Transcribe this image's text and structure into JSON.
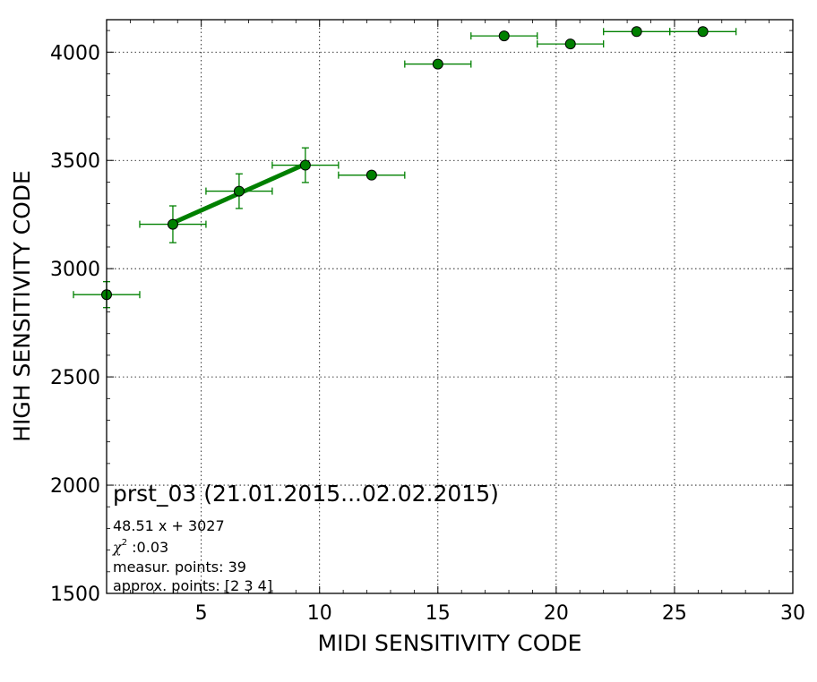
{
  "chart_data": {
    "type": "scatter",
    "xlabel": "MIDI SENSITIVITY CODE",
    "ylabel": "HIGH SENSITIVITY CODE",
    "xlim": [
      1,
      30
    ],
    "ylim": [
      1500,
      4150
    ],
    "x_ticks": [
      5,
      10,
      15,
      20,
      25,
      30
    ],
    "y_ticks": [
      1500,
      2000,
      2500,
      3000,
      3500,
      4000
    ],
    "grid": true,
    "colors": {
      "points": "#008000",
      "errorbars": "#008000",
      "fit": "#008000",
      "point_edge": "#000000"
    },
    "series": [
      {
        "points": [
          {
            "x": 1.0,
            "y": 2880,
            "xerr": 1.4,
            "yerr": 60
          },
          {
            "x": 3.8,
            "y": 3205,
            "xerr": 1.4,
            "yerr": 85
          },
          {
            "x": 6.6,
            "y": 3358,
            "xerr": 1.4,
            "yerr": 80
          },
          {
            "x": 9.4,
            "y": 3478,
            "xerr": 1.4,
            "yerr": 80
          },
          {
            "x": 12.2,
            "y": 3432,
            "xerr": 1.4,
            "yerr": 0
          },
          {
            "x": 15.0,
            "y": 3945,
            "xerr": 1.4,
            "yerr": 0
          },
          {
            "x": 17.8,
            "y": 4075,
            "xerr": 1.4,
            "yerr": 0
          },
          {
            "x": 20.6,
            "y": 4038,
            "xerr": 1.4,
            "yerr": 0
          },
          {
            "x": 23.4,
            "y": 4095,
            "xerr": 1.4,
            "yerr": 0
          },
          {
            "x": 26.2,
            "y": 4095,
            "xerr": 1.4,
            "yerr": 0
          }
        ]
      }
    ],
    "fit_line": {
      "slope": 48.51,
      "intercept": 3027,
      "x_range": [
        3.8,
        9.4
      ]
    },
    "annotation": {
      "title": "prst_03 (21.01.2015...02.02.2015)",
      "equation": "48.51 x + 3027",
      "chi_symbol": "χ",
      "chi_exponent": "2",
      "chi_value": " :0.03",
      "measured": "measur. points: 39",
      "approx": "approx. points: [2 3 4]"
    }
  }
}
